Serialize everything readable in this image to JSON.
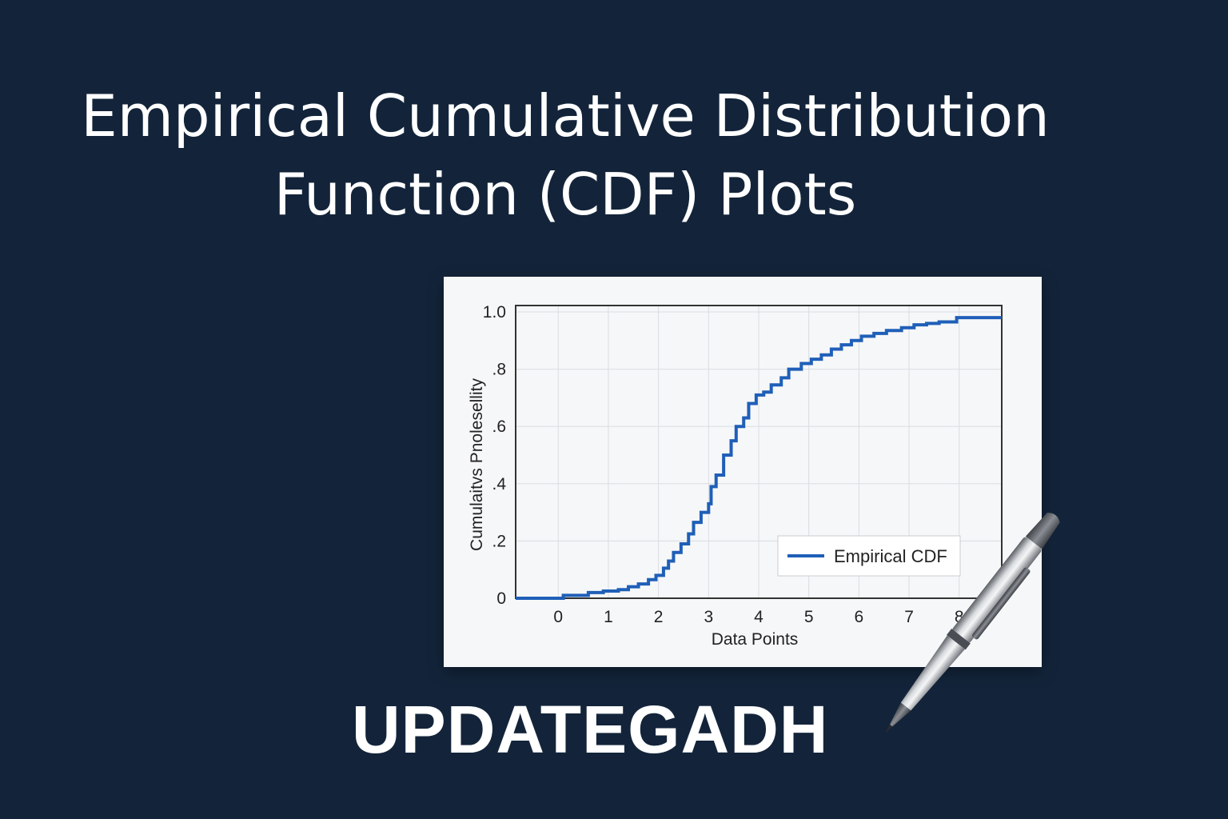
{
  "title": {
    "line1": "Empirical Cumulative Distribution",
    "line2": "Function (CDF) Plots"
  },
  "brand": "UPDATEGADH",
  "colors": {
    "background": "#13243a",
    "card": "#f6f7f8",
    "line": "#1f5fb8",
    "grid": "#d9dde2"
  },
  "chart_data": {
    "type": "line",
    "step": true,
    "xlabel": "Data Points",
    "ylabel": "Cumulaitvs Pnolesellity",
    "x_ticks": [
      "0",
      "1",
      "2",
      "3",
      "4",
      "5",
      "6",
      "7",
      "8"
    ],
    "y_ticks": [
      "0",
      ".2",
      ".4",
      ".6",
      ".8",
      "1.0"
    ],
    "xlim": [
      -0.85,
      8.85
    ],
    "ylim": [
      0,
      1.0
    ],
    "grid": true,
    "legend": "bottom-right",
    "series": [
      {
        "name": "Empirical CDF",
        "x": [
          -0.85,
          0.1,
          0.6,
          0.9,
          1.2,
          1.4,
          1.6,
          1.8,
          1.95,
          2.1,
          2.2,
          2.3,
          2.45,
          2.6,
          2.7,
          2.85,
          3.0,
          3.05,
          3.15,
          3.3,
          3.45,
          3.55,
          3.7,
          3.8,
          3.95,
          4.1,
          4.25,
          4.45,
          4.6,
          4.85,
          5.05,
          5.25,
          5.45,
          5.65,
          5.85,
          6.05,
          6.3,
          6.55,
          6.85,
          7.1,
          7.35,
          7.6,
          7.95,
          8.85
        ],
        "y": [
          0.0,
          0.01,
          0.02,
          0.025,
          0.03,
          0.04,
          0.05,
          0.065,
          0.08,
          0.105,
          0.13,
          0.16,
          0.19,
          0.225,
          0.265,
          0.3,
          0.33,
          0.39,
          0.43,
          0.5,
          0.55,
          0.6,
          0.63,
          0.68,
          0.71,
          0.72,
          0.745,
          0.77,
          0.8,
          0.82,
          0.835,
          0.85,
          0.87,
          0.885,
          0.9,
          0.915,
          0.925,
          0.935,
          0.945,
          0.955,
          0.96,
          0.965,
          0.98,
          0.98
        ]
      }
    ]
  }
}
